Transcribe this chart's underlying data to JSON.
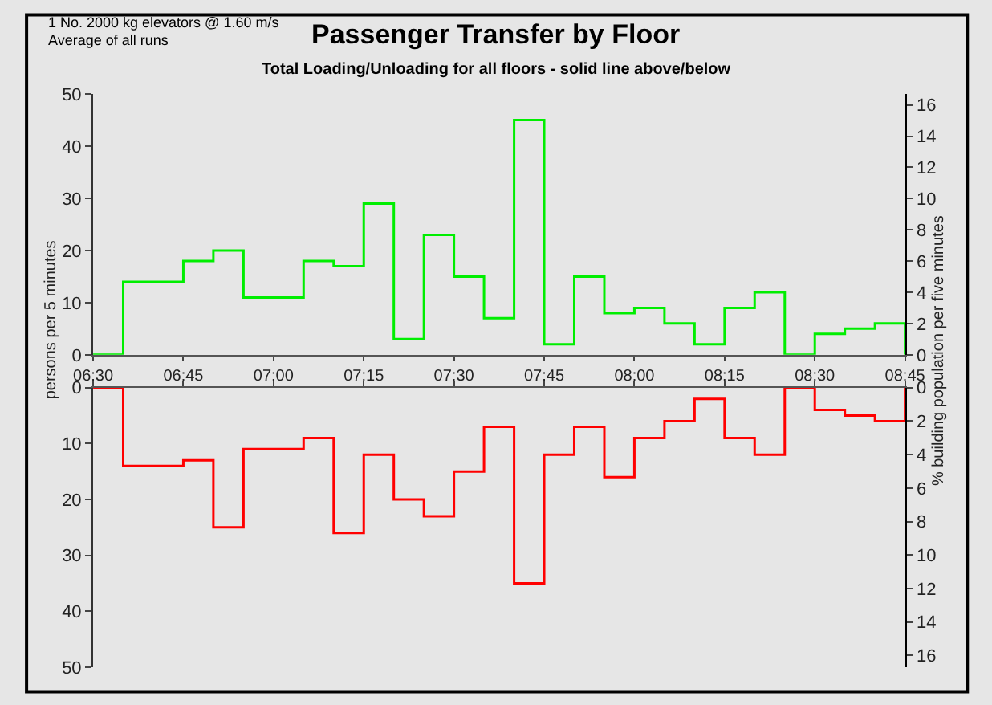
{
  "chart_data": [
    {
      "type": "step",
      "title": "Passenger Transfer by Floor",
      "subtitle": "Total Loading/Unloading for all floors - solid line above/below",
      "annotations": [
        "1 No. 2000 kg elevators @ 1.60 m/s",
        "Average of all runs"
      ],
      "ylabel": "persons per 5 minutes",
      "y2label": "% building population per five minutes",
      "x": [
        6.5,
        6.5833,
        6.6667,
        6.75,
        6.8333,
        6.9167,
        7.0,
        7.0833,
        7.1667,
        7.25,
        7.3333,
        7.4167,
        7.5,
        7.5833,
        7.6667,
        7.75,
        7.8333,
        7.9167,
        8.0,
        8.0833,
        8.1667,
        8.25,
        8.3333,
        8.4167,
        8.5,
        8.5833,
        8.6667,
        8.75
      ],
      "series": [
        {
          "color": "#00ee00",
          "values": [
            0,
            14,
            14,
            18,
            20,
            11,
            11,
            18,
            17,
            29,
            3,
            23,
            15,
            7,
            45,
            2,
            15,
            8,
            9,
            6,
            2,
            9,
            12,
            0,
            4,
            5,
            6,
            0
          ]
        }
      ],
      "xlim": [
        6.5,
        8.75
      ],
      "xticks": [
        {
          "value": 6.5,
          "label": "06:30"
        },
        {
          "value": 6.75,
          "label": "06:45"
        },
        {
          "value": 7.0,
          "label": "07:00"
        },
        {
          "value": 7.25,
          "label": "07:15"
        },
        {
          "value": 7.5,
          "label": "07:30"
        },
        {
          "value": 7.75,
          "label": "07:45"
        },
        {
          "value": 8.0,
          "label": "08:00"
        },
        {
          "value": 8.25,
          "label": "08:15"
        },
        {
          "value": 8.5,
          "label": "08:30"
        },
        {
          "value": 8.75,
          "label": "08:45"
        }
      ],
      "ylim": [
        0,
        50
      ],
      "yticks": [
        0,
        10,
        20,
        30,
        40,
        50
      ],
      "y2lim": [
        0,
        16.7
      ],
      "y2ticks": [
        0,
        2,
        4,
        6,
        8,
        10,
        12,
        14,
        16
      ]
    },
    {
      "type": "step",
      "x": [
        6.5,
        6.5833,
        6.6667,
        6.75,
        6.8333,
        6.9167,
        7.0,
        7.0833,
        7.1667,
        7.25,
        7.3333,
        7.4167,
        7.5,
        7.5833,
        7.6667,
        7.75,
        7.8333,
        7.9167,
        8.0,
        8.0833,
        8.1667,
        8.25,
        8.3333,
        8.4167,
        8.5,
        8.5833,
        8.6667,
        8.75
      ],
      "series": [
        {
          "color": "#ff0000",
          "values": [
            0,
            14,
            14,
            13,
            25,
            11,
            11,
            9,
            26,
            12,
            20,
            23,
            15,
            7,
            35,
            12,
            7,
            16,
            9,
            6,
            2,
            9,
            12,
            0,
            4,
            5,
            6,
            0
          ]
        }
      ],
      "xlim": [
        6.5,
        8.75
      ],
      "xticks": [
        {
          "value": 6.5,
          "label": null
        },
        {
          "value": 6.75,
          "label": null
        },
        {
          "value": 7.0,
          "label": null
        },
        {
          "value": 7.25,
          "label": null
        },
        {
          "value": 7.5,
          "label": null
        },
        {
          "value": 7.75,
          "label": null
        },
        {
          "value": 8.0,
          "label": null
        },
        {
          "value": 8.25,
          "label": null
        },
        {
          "value": 8.5,
          "label": null
        },
        {
          "value": 8.75,
          "label": null
        }
      ],
      "ylim": [
        50,
        0
      ],
      "yticks": [
        0,
        10,
        20,
        30,
        40,
        50
      ],
      "y2lim": [
        16.7,
        0
      ],
      "y2ticks": [
        0,
        2,
        4,
        6,
        8,
        10,
        12,
        14,
        16
      ],
      "tick_labels": "y"
    }
  ]
}
